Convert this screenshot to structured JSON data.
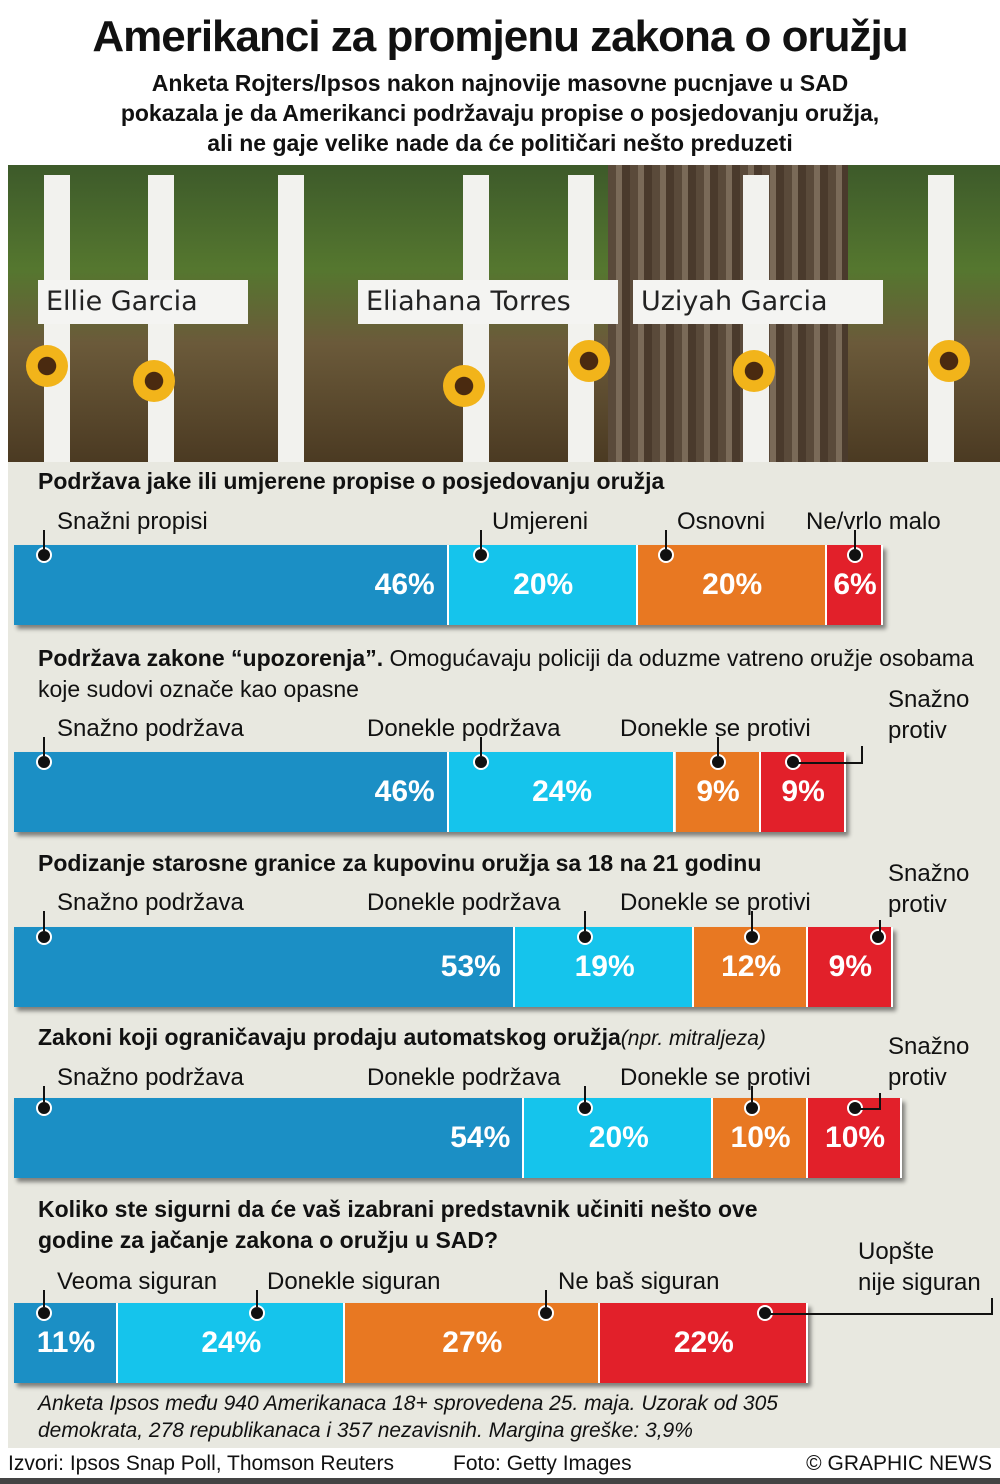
{
  "title": "Amerikanci za promjenu zakona o oružju",
  "subtitle": [
    "Anketa Rojters/Ipsos nakon najnovije masovne pucnjave u SAD",
    "pokazala je da Amerikanci podržavaju propise o posjedovanju oružja,",
    "ali ne gaje velike nade da će političari nešto preduzeti"
  ],
  "photo_names": [
    "Ellie Garcia",
    "Eliahana Torres",
    "Uziyah Garcia"
  ],
  "colors": {
    "dark_blue": "#1b8fc5",
    "light_blue": "#15c4ec",
    "orange": "#e87822",
    "red": "#e2202a"
  },
  "chart_data": [
    {
      "type": "bar",
      "stacked": true,
      "title": "Podržava jake ili umjerene propise o posjedovanju oružja",
      "categories": [
        "Snažni propisi",
        "Umjereni",
        "Osnovni",
        "Ne/vrlo malo"
      ],
      "values": [
        46,
        20,
        20,
        6
      ],
      "unit": "%"
    },
    {
      "type": "bar",
      "stacked": true,
      "title": "Podržava zakone “upozorenja”.",
      "title_rest": "Omogućavaju policiji da oduzme vatreno oružje osobama koje sudovi označe kao opasne",
      "categories": [
        "Snažno podržava",
        "Donekle podržava",
        "Donekle se protivi",
        "Snažno protiv"
      ],
      "values": [
        46,
        24,
        9,
        9
      ],
      "unit": "%"
    },
    {
      "type": "bar",
      "stacked": true,
      "title": "Podizanje starosne granice za kupovinu oružja sa 18 na 21 godinu",
      "categories": [
        "Snažno podržava",
        "Donekle podržava",
        "Donekle se protivi",
        "Snažno protiv"
      ],
      "values": [
        53,
        19,
        12,
        9
      ],
      "unit": "%"
    },
    {
      "type": "bar",
      "stacked": true,
      "title": "Zakoni koji ograničavaju prodaju automatskog oružja",
      "title_rest": "(npr. mitraljeza)",
      "categories": [
        "Snažno podržava",
        "Donekle podržava",
        "Donekle se protivi",
        "Snažno protiv"
      ],
      "values": [
        54,
        20,
        10,
        10
      ],
      "unit": "%"
    },
    {
      "type": "bar",
      "stacked": true,
      "title": "Koliko ste sigurni da će vaš izabrani predstavnik učiniti nešto ove godine za jačanje zakona o oružju u SAD?",
      "categories": [
        "Veoma siguran",
        "Donekle siguran",
        "Ne baš siguran",
        "Uopšte nije siguran"
      ],
      "values": [
        11,
        24,
        27,
        22
      ],
      "unit": "%"
    }
  ],
  "note": [
    "Anketa Ipsos među 940 Amerikanaca 18+ sprovedena 25. maja. Uzorak od 305",
    "demokrata, 278 republikanaca i 357 nezavisnih. Margina greške: 3,9%"
  ],
  "footer": {
    "sources": "Izvori: Ipsos Snap Poll, Thomson Reuters",
    "photo": "Foto: Getty Images",
    "credit": "© GRAPHIC NEWS"
  }
}
